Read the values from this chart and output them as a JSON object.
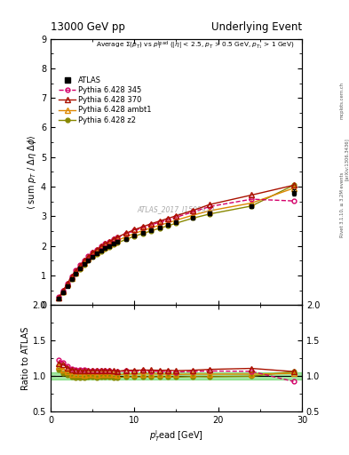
{
  "title_left": "13000 GeV pp",
  "title_right": "Underlying Event",
  "ylabel_main": "⟨ sum p_T / Δη deltaϕ⟩",
  "ylabel_ratio": "Ratio to ATLAS",
  "xlabel": "p_Tˡead [GeV]",
  "watermark": "ATLAS_2017_I1509919",
  "right_label_top": "Rivet 3.1.10, ≥ 3.2M events",
  "right_label_mid": "[arXiv:1306.3436]",
  "right_label_bot": "mcplots.cern.ch",
  "ylim_main": [
    0,
    9
  ],
  "ylim_ratio": [
    0.5,
    2
  ],
  "xlim": [
    0,
    30
  ],
  "atlas_x": [
    1.0,
    1.5,
    2.0,
    2.5,
    3.0,
    3.5,
    4.0,
    4.5,
    5.0,
    5.5,
    6.0,
    6.5,
    7.0,
    7.5,
    8.0,
    9.0,
    10.0,
    11.0,
    12.0,
    13.0,
    14.0,
    15.0,
    17.0,
    19.0,
    24.0,
    29.0
  ],
  "atlas_y": [
    0.22,
    0.42,
    0.65,
    0.88,
    1.07,
    1.24,
    1.39,
    1.52,
    1.64,
    1.75,
    1.84,
    1.92,
    1.99,
    2.07,
    2.15,
    2.24,
    2.35,
    2.44,
    2.53,
    2.62,
    2.7,
    2.8,
    2.95,
    3.1,
    3.35,
    3.8
  ],
  "atlas_yerr": [
    0.01,
    0.01,
    0.01,
    0.01,
    0.01,
    0.01,
    0.01,
    0.01,
    0.01,
    0.01,
    0.01,
    0.01,
    0.01,
    0.01,
    0.01,
    0.01,
    0.01,
    0.02,
    0.02,
    0.02,
    0.02,
    0.02,
    0.03,
    0.05,
    0.05,
    0.1
  ],
  "py345_x": [
    1.0,
    1.5,
    2.0,
    2.5,
    3.0,
    3.5,
    4.0,
    4.5,
    5.0,
    5.5,
    6.0,
    6.5,
    7.0,
    7.5,
    8.0,
    9.0,
    10.0,
    11.0,
    12.0,
    13.0,
    14.0,
    15.0,
    17.0,
    19.0,
    24.0,
    29.0
  ],
  "py345_y": [
    0.27,
    0.5,
    0.74,
    0.97,
    1.17,
    1.35,
    1.51,
    1.65,
    1.77,
    1.88,
    1.98,
    2.07,
    2.15,
    2.22,
    2.29,
    2.41,
    2.52,
    2.62,
    2.71,
    2.8,
    2.88,
    2.97,
    3.15,
    3.33,
    3.58,
    3.52
  ],
  "py370_x": [
    1.0,
    1.5,
    2.0,
    2.5,
    3.0,
    3.5,
    4.0,
    4.5,
    5.0,
    5.5,
    6.0,
    6.5,
    7.0,
    7.5,
    8.0,
    9.0,
    10.0,
    11.0,
    12.0,
    13.0,
    14.0,
    15.0,
    17.0,
    19.0,
    24.0,
    29.0
  ],
  "py370_y": [
    0.26,
    0.49,
    0.73,
    0.96,
    1.16,
    1.34,
    1.5,
    1.64,
    1.77,
    1.88,
    1.98,
    2.07,
    2.15,
    2.23,
    2.3,
    2.43,
    2.55,
    2.65,
    2.75,
    2.84,
    2.93,
    3.02,
    3.2,
    3.4,
    3.72,
    4.05
  ],
  "pyambt1_x": [
    1.0,
    1.5,
    2.0,
    2.5,
    3.0,
    3.5,
    4.0,
    4.5,
    5.0,
    5.5,
    6.0,
    6.5,
    7.0,
    7.5,
    8.0,
    9.0,
    10.0,
    11.0,
    12.0,
    13.0,
    14.0,
    15.0,
    17.0,
    19.0,
    24.0,
    29.0
  ],
  "pyambt1_y": [
    0.25,
    0.46,
    0.69,
    0.91,
    1.1,
    1.27,
    1.42,
    1.56,
    1.68,
    1.79,
    1.89,
    1.97,
    2.05,
    2.12,
    2.19,
    2.31,
    2.42,
    2.52,
    2.61,
    2.7,
    2.78,
    2.87,
    3.04,
    3.19,
    3.45,
    3.95
  ],
  "pyz2_x": [
    1.0,
    1.5,
    2.0,
    2.5,
    3.0,
    3.5,
    4.0,
    4.5,
    5.0,
    5.5,
    6.0,
    6.5,
    7.0,
    7.5,
    8.0,
    9.0,
    10.0,
    11.0,
    12.0,
    13.0,
    14.0,
    15.0,
    17.0,
    19.0,
    24.0,
    29.0
  ],
  "pyz2_y": [
    0.24,
    0.44,
    0.66,
    0.87,
    1.05,
    1.22,
    1.37,
    1.5,
    1.62,
    1.72,
    1.82,
    1.9,
    1.97,
    2.04,
    2.11,
    2.22,
    2.33,
    2.42,
    2.51,
    2.6,
    2.68,
    2.77,
    2.94,
    3.08,
    3.35,
    4.05
  ],
  "color_345": "#d4006a",
  "color_370": "#aa1100",
  "color_ambt1": "#dd8800",
  "color_z2": "#888800",
  "color_atlas": "#000000",
  "color_band": "#00bb00"
}
